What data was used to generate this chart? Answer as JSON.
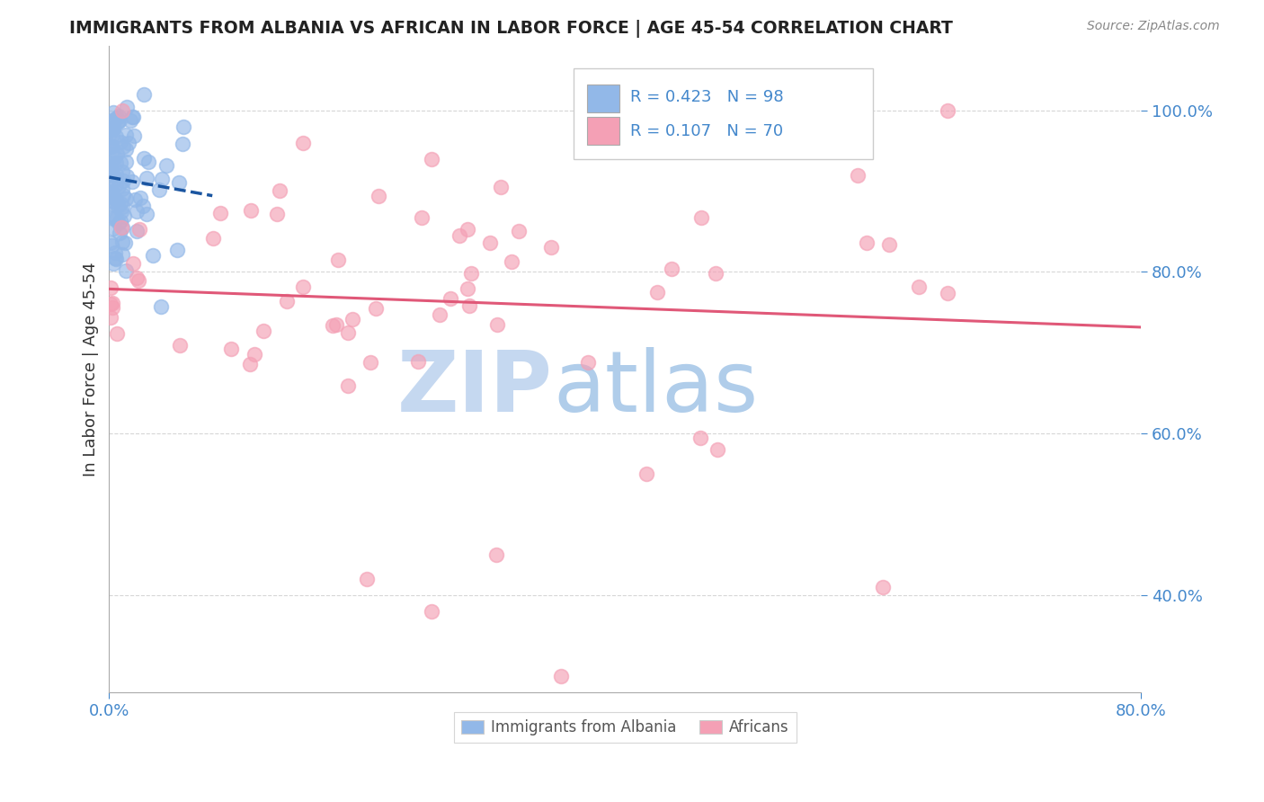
{
  "title": "IMMIGRANTS FROM ALBANIA VS AFRICAN IN LABOR FORCE | AGE 45-54 CORRELATION CHART",
  "source": "Source: ZipAtlas.com",
  "ylabel": "In Labor Force | Age 45-54",
  "legend1_R": "0.423",
  "legend1_N": "98",
  "legend2_R": "0.107",
  "legend2_N": "70",
  "blue_color": "#92b8e8",
  "pink_color": "#f4a0b5",
  "blue_line_color": "#1a55a0",
  "pink_line_color": "#e05878",
  "watermark_zip_color": "#c5d8f0",
  "watermark_atlas_color": "#a8c8e8",
  "xlim": [
    0.0,
    0.8
  ],
  "ylim": [
    0.28,
    1.08
  ],
  "yticks": [
    0.4,
    0.6,
    0.8,
    1.0
  ],
  "ytick_labels": [
    "40.0%",
    "60.0%",
    "80.0%",
    "100.0%"
  ],
  "xticks": [
    0.0,
    0.8
  ],
  "xtick_labels": [
    "0.0%",
    "80.0%"
  ],
  "tick_color": "#4488cc",
  "grid_color": "#cccccc",
  "title_color": "#222222",
  "source_color": "#888888",
  "ylabel_color": "#333333",
  "legend_border_color": "#cccccc",
  "bottom_legend_border": "#cccccc"
}
